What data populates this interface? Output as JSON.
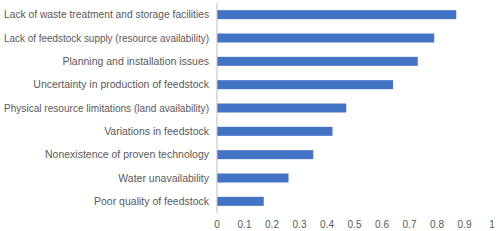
{
  "chart_data": {
    "type": "bar",
    "orientation": "horizontal",
    "categories": [
      "Lack of waste treatment and storage facilities",
      "Lack of feedstock supply (resource availability)",
      "Planning and installation issues",
      "Uncertainty in production of feedstock",
      "Physical resource limitations (land availability)",
      "Variations in feedstock",
      "Nonexistence of proven technology",
      "Water unavailability",
      "Poor quality of feedstock"
    ],
    "values": [
      0.87,
      0.79,
      0.73,
      0.64,
      0.47,
      0.42,
      0.35,
      0.26,
      0.17
    ],
    "color": "#4472c4",
    "xlim": [
      0,
      1
    ],
    "xticks": [
      0,
      0.1,
      0.2,
      0.3,
      0.4,
      0.5,
      0.6,
      0.7,
      0.8,
      0.9,
      1
    ],
    "grid": false
  }
}
